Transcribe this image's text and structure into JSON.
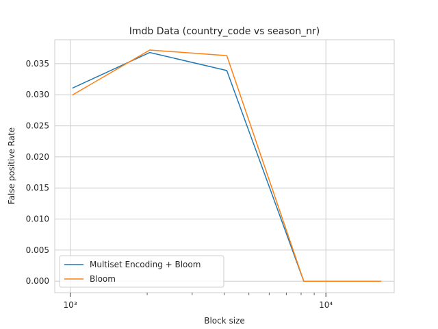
{
  "chart_data": {
    "type": "line",
    "title": "Imdb Data (country_code vs season_nr)",
    "xlabel": "Block size",
    "ylabel": "False positive Rate",
    "xscale": "log",
    "xlim": [
      870,
      18500
    ],
    "ylim": [
      -0.00185,
      0.03885
    ],
    "x": [
      1024,
      2048,
      4096,
      8192,
      16384
    ],
    "series": [
      {
        "name": "Multiset Encoding + Bloom",
        "color": "#1f77b4",
        "values": [
          0.0311,
          0.0368,
          0.0339,
          0.0,
          0.0
        ]
      },
      {
        "name": "Bloom",
        "color": "#ff7f0e",
        "values": [
          0.03,
          0.0372,
          0.0363,
          0.0,
          0.0
        ]
      }
    ],
    "y_ticks": [
      "0.000",
      "0.005",
      "0.010",
      "0.015",
      "0.020",
      "0.025",
      "0.030",
      "0.035"
    ],
    "y_tick_values": [
      0,
      0.005,
      0.01,
      0.015,
      0.02,
      0.025,
      0.03,
      0.035
    ],
    "x_major_ticks": [
      1000,
      10000
    ],
    "x_tick_labels": [
      "10³",
      "10⁴"
    ],
    "grid": true,
    "legend": "lower-left"
  }
}
